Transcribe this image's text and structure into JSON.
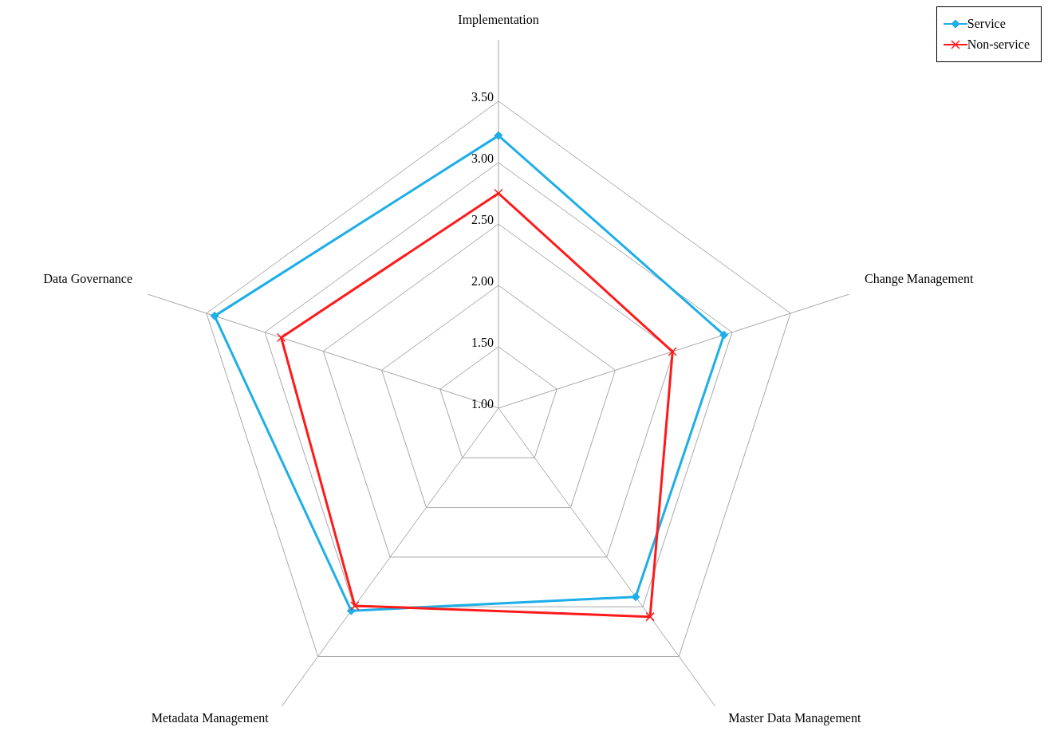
{
  "chart_data": {
    "type": "radar",
    "categories": [
      "Implementation",
      "Change Management",
      "Master Data Management",
      "Metadata Management",
      "Data Governance"
    ],
    "series": [
      {
        "name": "Service",
        "color": "#1eaee8",
        "values": [
          3.22,
          2.93,
          2.9,
          3.04,
          3.43
        ]
      },
      {
        "name": "Non-service",
        "color": "#ff1a1a",
        "values": [
          2.75,
          2.49,
          3.1,
          2.99,
          2.86
        ]
      }
    ],
    "ylim": [
      1,
      3.5
    ],
    "yticks": [
      {
        "value": 1,
        "label": "1.00"
      },
      {
        "value": 1.5,
        "label": "1.50"
      },
      {
        "value": 2,
        "label": "2.00"
      },
      {
        "value": 2.5,
        "label": "2.50"
      },
      {
        "value": 3,
        "label": "3.00"
      },
      {
        "value": 3.5,
        "label": "3.50"
      }
    ],
    "grid": true,
    "legend": "top right",
    "marker": [
      "diamond",
      "cross"
    ]
  }
}
